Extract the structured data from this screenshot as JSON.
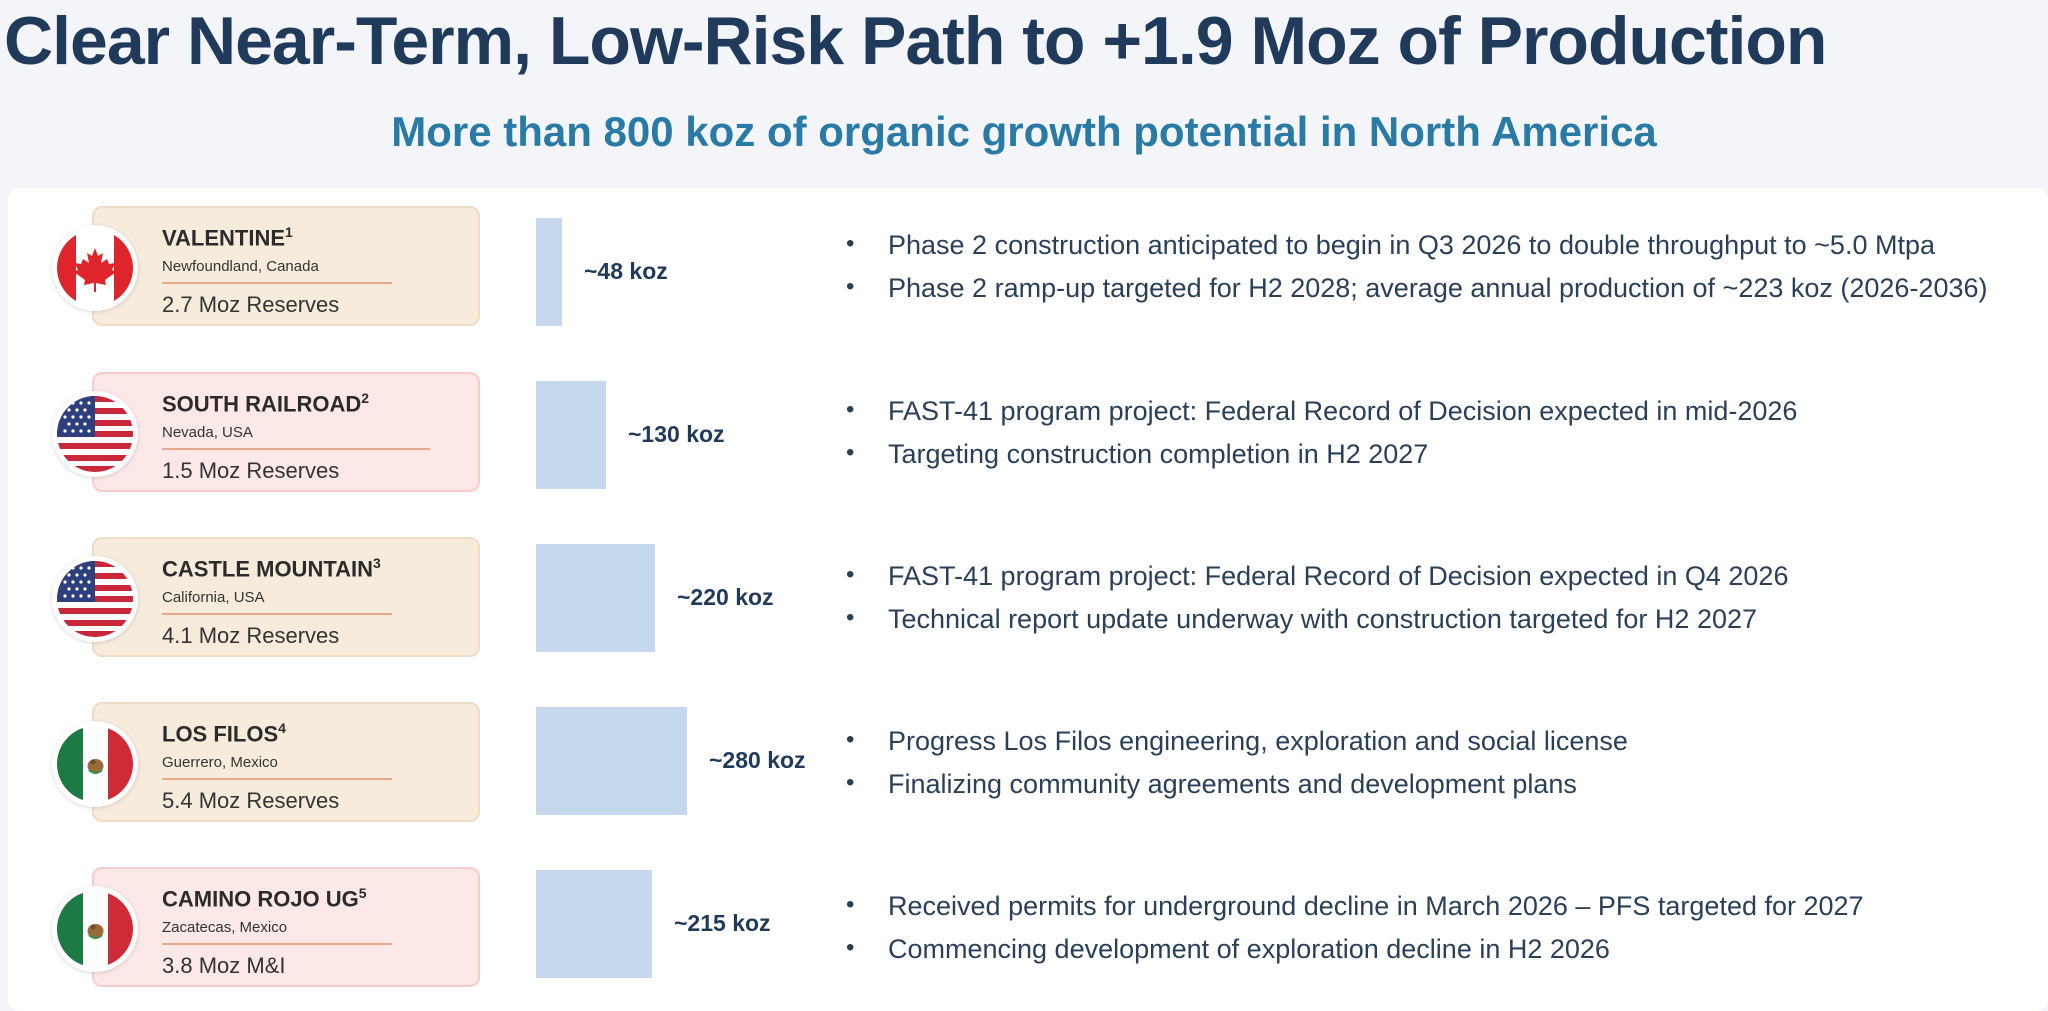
{
  "title": "Clear Near-Term, Low-Risk Path to +1.9 Moz of Production",
  "subtitle": "More than 800 koz of organic growth potential in North America",
  "colors": {
    "title": "#1f3a5a",
    "subtitle": "#2a7aa6",
    "bar": "#c5d8ee",
    "card_beige": "#f7ebdc",
    "card_pink": "#fde8e8"
  },
  "projects": [
    {
      "name": "VALENTINE",
      "note": "1",
      "location": "Newfoundland, Canada",
      "reserves": "2.7 Moz Reserves",
      "flag": "canada-flag-icon",
      "card_style": "beige",
      "production_koz": 48,
      "production_label": "~48 koz",
      "bullets": [
        "Phase 2 construction anticipated to begin in Q3 2026 to double throughput to ~5.0 Mtpa",
        "Phase 2 ramp-up targeted for H2 2028; average annual production of ~223 koz (2026-2036)"
      ]
    },
    {
      "name": "SOUTH RAILROAD",
      "note": "2",
      "location": "Nevada, USA",
      "reserves": "1.5 Moz Reserves",
      "flag": "usa-flag-icon",
      "card_style": "pink",
      "production_koz": 130,
      "production_label": "~130 koz",
      "bullets": [
        "FAST-41 program project: Federal Record of Decision expected in mid-2026",
        "Targeting construction completion in H2 2027"
      ]
    },
    {
      "name": "CASTLE MOUNTAIN",
      "note": "3",
      "location": "California, USA",
      "reserves": "4.1 Moz Reserves",
      "flag": "usa-flag-icon",
      "card_style": "beige",
      "production_koz": 220,
      "production_label": "~220 koz",
      "bullets": [
        "FAST-41 program project: Federal Record of Decision expected in Q4 2026",
        "Technical report update underway with construction targeted for H2 2027"
      ]
    },
    {
      "name": "LOS FILOS",
      "note": "4",
      "location": "Guerrero, Mexico",
      "reserves": "5.4 Moz Reserves",
      "flag": "mexico-flag-icon",
      "card_style": "beige",
      "production_koz": 280,
      "production_label": "~280 koz",
      "bullets": [
        "Progress Los Filos engineering, exploration and social license",
        "Finalizing community agreements and development plans"
      ]
    },
    {
      "name": "CAMINO ROJO UG",
      "note": "5",
      "location": "Zacatecas, Mexico",
      "reserves": "3.8 Moz M&I",
      "flag": "mexico-flag-icon",
      "card_style": "pink",
      "production_koz": 215,
      "production_label": "~215 koz",
      "bullets": [
        "Received permits for underground decline in March 2026 – PFS targeted for 2027",
        "Commencing development of exploration decline in H2 2026"
      ]
    }
  ]
}
